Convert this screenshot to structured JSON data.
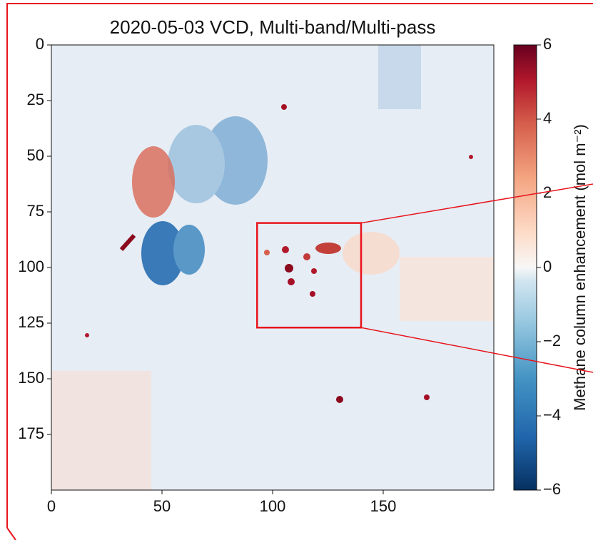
{
  "chart_data": {
    "type": "heatmap",
    "title": "2020-05-03 VCD, Multi-band/Multi-pass",
    "xlim": [
      0,
      200
    ],
    "ylim": [
      0,
      200
    ],
    "y_inverted": true,
    "xticks": [
      0,
      50,
      100,
      150
    ],
    "yticks": [
      0,
      25,
      50,
      75,
      100,
      125,
      150,
      175
    ],
    "colorbar": {
      "label": "Methane column enhancement (mol m⁻²)",
      "colormap": "RdBu_r",
      "lim": [
        -6,
        6
      ],
      "ticks": [
        {
          "value": -6,
          "label": "−6"
        },
        {
          "value": -4,
          "label": "−4"
        },
        {
          "value": -2,
          "label": "−2"
        },
        0,
        2,
        4,
        6
      ]
    },
    "highlight_box": {
      "x": [
        93,
        140
      ],
      "y": [
        80,
        127
      ],
      "color": "#e8141c"
    }
  }
}
